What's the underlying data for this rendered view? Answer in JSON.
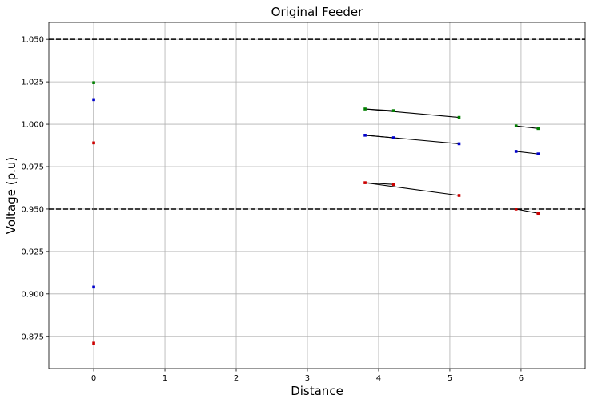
{
  "chart_data": {
    "type": "scatter",
    "title": "Original Feeder",
    "xlabel": "Distance",
    "ylabel": "Voltage (p.u)",
    "xlim": [
      -0.63,
      6.9
    ],
    "ylim": [
      0.856,
      1.06
    ],
    "xticks": [
      0,
      1,
      2,
      3,
      4,
      5,
      6
    ],
    "xtick_labels": [
      "0",
      "1",
      "2",
      "3",
      "4",
      "5",
      "6"
    ],
    "yticks": [
      0.875,
      0.9,
      0.925,
      0.95,
      0.975,
      1.0,
      1.025,
      1.05
    ],
    "ytick_labels": [
      "0.875",
      "0.900",
      "0.925",
      "0.950",
      "0.975",
      "1.000",
      "1.025",
      "1.050"
    ],
    "grid": true,
    "limit_lines": [
      1.05,
      0.95
    ],
    "series": [
      {
        "color": "#008000",
        "points": [
          [
            0,
            1.0245
          ],
          [
            3.81,
            1.009
          ],
          [
            4.21,
            1.008
          ],
          [
            5.13,
            1.004
          ],
          [
            5.93,
            0.999
          ],
          [
            6.24,
            0.9975
          ]
        ]
      },
      {
        "color": "#0000cc",
        "points": [
          [
            0,
            1.0145
          ],
          [
            0,
            0.904
          ],
          [
            3.81,
            0.9935
          ],
          [
            4.21,
            0.992
          ],
          [
            5.13,
            0.9885
          ],
          [
            5.93,
            0.984
          ],
          [
            6.24,
            0.9825
          ]
        ]
      },
      {
        "color": "#cc0000",
        "points": [
          [
            0,
            0.989
          ],
          [
            0,
            0.871
          ],
          [
            3.81,
            0.9655
          ],
          [
            4.21,
            0.9645
          ],
          [
            5.13,
            0.958
          ],
          [
            5.93,
            0.95
          ],
          [
            6.24,
            0.9475
          ]
        ]
      }
    ],
    "connectors": [
      [
        [
          0,
          1.0245
        ],
        [
          0,
          0.871
        ]
      ],
      [
        [
          3.81,
          1.009
        ],
        [
          5.13,
          1.004
        ]
      ],
      [
        [
          4.21,
          1.008
        ],
        [
          3.81,
          1.009
        ]
      ],
      [
        [
          3.81,
          0.9935
        ],
        [
          5.13,
          0.9885
        ]
      ],
      [
        [
          4.21,
          0.992
        ],
        [
          3.81,
          0.9935
        ]
      ],
      [
        [
          3.81,
          0.9655
        ],
        [
          5.13,
          0.958
        ]
      ],
      [
        [
          4.21,
          0.9645
        ],
        [
          3.81,
          0.9655
        ]
      ],
      [
        [
          5.93,
          0.999
        ],
        [
          6.24,
          0.9975
        ]
      ],
      [
        [
          5.93,
          0.984
        ],
        [
          6.24,
          0.9825
        ]
      ],
      [
        [
          5.93,
          0.95
        ],
        [
          6.24,
          0.9475
        ]
      ]
    ]
  }
}
